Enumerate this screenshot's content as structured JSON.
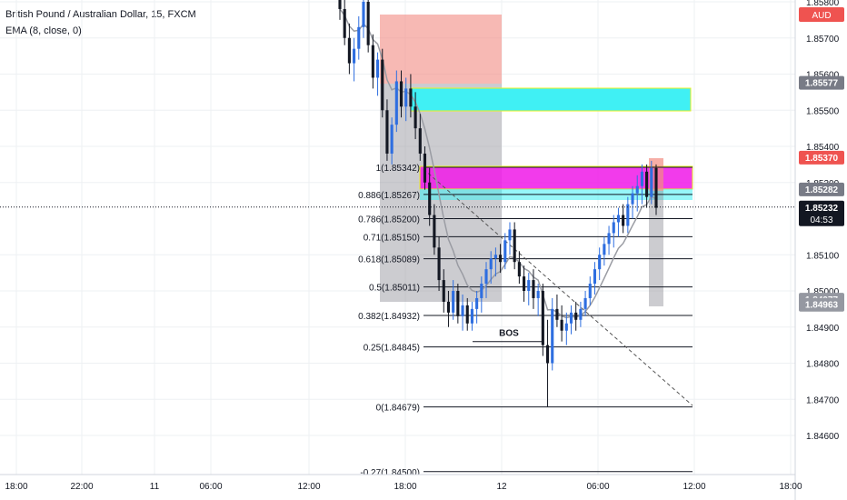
{
  "header": {
    "title": "British Pound / Australian Dollar, 15, FXCM",
    "indicator": "EMA (8, close, 0)",
    "currency_badge": "AUD"
  },
  "price_axis": {
    "ticks": [
      "1.85800",
      "1.85700",
      "1.85600",
      "1.85500",
      "1.85400",
      "1.85300",
      "1.85100",
      "1.85000",
      "1.84900",
      "1.84800",
      "1.84700",
      "1.84600"
    ],
    "tick_values": [
      1.858,
      1.857,
      1.856,
      1.855,
      1.854,
      1.853,
      1.851,
      1.85,
      1.849,
      1.848,
      1.847,
      1.846
    ],
    "labels": [
      {
        "text": "1.85577",
        "value": 1.85577,
        "color": "#787b86"
      },
      {
        "text": "1.85370",
        "value": 1.8537,
        "color": "#ef5350"
      },
      {
        "text": "1.85282",
        "value": 1.85282,
        "color": "#787b86"
      },
      {
        "text": "1.85232",
        "value": 1.85232,
        "color": "#131722",
        "sub": "04:53"
      },
      {
        "text": "1.84977",
        "value": 1.84977,
        "color": "#9598a1"
      },
      {
        "text": "1.84963",
        "value": 1.84963,
        "color": "#9598a1"
      }
    ]
  },
  "time_axis": {
    "labels": [
      "18:00",
      "22:00",
      "11",
      "06:00",
      "12:00",
      "18:00",
      "12",
      "06:00",
      "12:00",
      "18:00"
    ]
  },
  "chart_data": {
    "type": "candlestick",
    "symbol": "GBPAUD",
    "timeframe": "15",
    "ylim": [
      1.845,
      1.8584
    ],
    "current_price": 1.85232,
    "fib_levels": [
      {
        "label": "1(1.85342)",
        "value": 1.85342
      },
      {
        "label": "0.886(1.85267)",
        "value": 1.85267
      },
      {
        "label": "0.786(1.85200)",
        "value": 1.852
      },
      {
        "label": "0.71(1.85150)",
        "value": 1.8515
      },
      {
        "label": "0.618(1.85089)",
        "value": 1.85089
      },
      {
        "label": "0.5(1.85011)",
        "value": 1.85011
      },
      {
        "label": "0.382(1.84932)",
        "value": 1.84932
      },
      {
        "label": "0.25(1.84845)",
        "value": 1.84845
      },
      {
        "label": "0(1.84679)",
        "value": 1.84679
      },
      {
        "label": "-0.27(1.84500)",
        "value": 1.845
      }
    ],
    "annotations": [
      {
        "text": "BOS",
        "value": 1.8489
      }
    ],
    "candles": [
      [
        1.8581,
        1.8584,
        1.8575,
        1.8578
      ],
      [
        1.8578,
        1.8582,
        1.8568,
        1.857
      ],
      [
        1.857,
        1.8574,
        1.856,
        1.8563
      ],
      [
        1.8563,
        1.857,
        1.8558,
        1.8567
      ],
      [
        1.8567,
        1.8576,
        1.8564,
        1.8573
      ],
      [
        1.8573,
        1.8584,
        1.857,
        1.858
      ],
      [
        1.858,
        1.8583,
        1.8566,
        1.8568
      ],
      [
        1.8568,
        1.8571,
        1.8556,
        1.8559
      ],
      [
        1.8559,
        1.8566,
        1.8554,
        1.8564
      ],
      [
        1.8564,
        1.8567,
        1.8548,
        1.855
      ],
      [
        1.855,
        1.8553,
        1.8536,
        1.8538
      ],
      [
        1.8538,
        1.8548,
        1.8535,
        1.8546
      ],
      [
        1.8546,
        1.8561,
        1.8544,
        1.8558
      ],
      [
        1.8558,
        1.8561,
        1.8548,
        1.8551
      ],
      [
        1.8551,
        1.8559,
        1.8547,
        1.8556
      ],
      [
        1.8556,
        1.856,
        1.8548,
        1.8551
      ],
      [
        1.8551,
        1.8555,
        1.8542,
        1.8545
      ],
      [
        1.8545,
        1.8549,
        1.8536,
        1.8538
      ],
      [
        1.8538,
        1.854,
        1.8528,
        1.853
      ],
      [
        1.853,
        1.8534,
        1.8518,
        1.8521
      ],
      [
        1.8521,
        1.8524,
        1.851,
        1.8512
      ],
      [
        1.8512,
        1.8515,
        1.85,
        1.8503
      ],
      [
        1.8503,
        1.8506,
        1.8494,
        1.8497
      ],
      [
        1.8497,
        1.85,
        1.849,
        1.8494
      ],
      [
        1.8494,
        1.8503,
        1.8492,
        1.85
      ],
      [
        1.85,
        1.8502,
        1.8491,
        1.8493
      ],
      [
        1.8493,
        1.8499,
        1.8489,
        1.8496
      ],
      [
        1.8496,
        1.8498,
        1.8489,
        1.8491
      ],
      [
        1.8491,
        1.8497,
        1.8489,
        1.8495
      ],
      [
        1.8495,
        1.85,
        1.8491,
        1.8498
      ],
      [
        1.8498,
        1.8504,
        1.8494,
        1.8502
      ],
      [
        1.8502,
        1.8508,
        1.8498,
        1.8506
      ],
      [
        1.8506,
        1.8511,
        1.8502,
        1.8509
      ],
      [
        1.8509,
        1.8512,
        1.8504,
        1.851
      ],
      [
        1.851,
        1.8513,
        1.8505,
        1.8508
      ],
      [
        1.8508,
        1.8516,
        1.8506,
        1.8514
      ],
      [
        1.8514,
        1.8519,
        1.851,
        1.8517
      ],
      [
        1.8517,
        1.8519,
        1.8506,
        1.8508
      ],
      [
        1.8508,
        1.8511,
        1.8502,
        1.8504
      ],
      [
        1.8504,
        1.8507,
        1.8497,
        1.85
      ],
      [
        1.85,
        1.8505,
        1.8496,
        1.8503
      ],
      [
        1.8503,
        1.8506,
        1.8495,
        1.8498
      ],
      [
        1.8498,
        1.8502,
        1.8493,
        1.85
      ],
      [
        1.85,
        1.8502,
        1.8482,
        1.8485
      ],
      [
        1.8485,
        1.8492,
        1.8468,
        1.848
      ],
      [
        1.848,
        1.8498,
        1.8478,
        1.8495
      ],
      [
        1.8495,
        1.8499,
        1.849,
        1.8492
      ],
      [
        1.8492,
        1.8496,
        1.8486,
        1.8489
      ],
      [
        1.8489,
        1.8494,
        1.8485,
        1.8491
      ],
      [
        1.8491,
        1.8496,
        1.8488,
        1.8494
      ],
      [
        1.8494,
        1.8497,
        1.8489,
        1.8492
      ],
      [
        1.8492,
        1.8497,
        1.849,
        1.8495
      ],
      [
        1.8495,
        1.85,
        1.8493,
        1.8498
      ],
      [
        1.8498,
        1.8504,
        1.8496,
        1.8502
      ],
      [
        1.8502,
        1.8508,
        1.8499,
        1.8506
      ],
      [
        1.8506,
        1.8512,
        1.8503,
        1.851
      ],
      [
        1.851,
        1.8515,
        1.8507,
        1.8513
      ],
      [
        1.8513,
        1.8518,
        1.851,
        1.8516
      ],
      [
        1.8516,
        1.8521,
        1.8512,
        1.8519
      ],
      [
        1.8519,
        1.8523,
        1.8515,
        1.8521
      ],
      [
        1.8521,
        1.8524,
        1.8516,
        1.8518
      ],
      [
        1.8518,
        1.8526,
        1.8516,
        1.8524
      ],
      [
        1.8524,
        1.8529,
        1.852,
        1.8527
      ],
      [
        1.8527,
        1.8532,
        1.8522,
        1.8529
      ],
      [
        1.8529,
        1.8535,
        1.8524,
        1.8533
      ],
      [
        1.8533,
        1.8535,
        1.8523,
        1.8526
      ],
      [
        1.8526,
        1.8536,
        1.8524,
        1.8534
      ],
      [
        1.8534,
        1.8535,
        1.8521,
        1.8523
      ]
    ]
  }
}
